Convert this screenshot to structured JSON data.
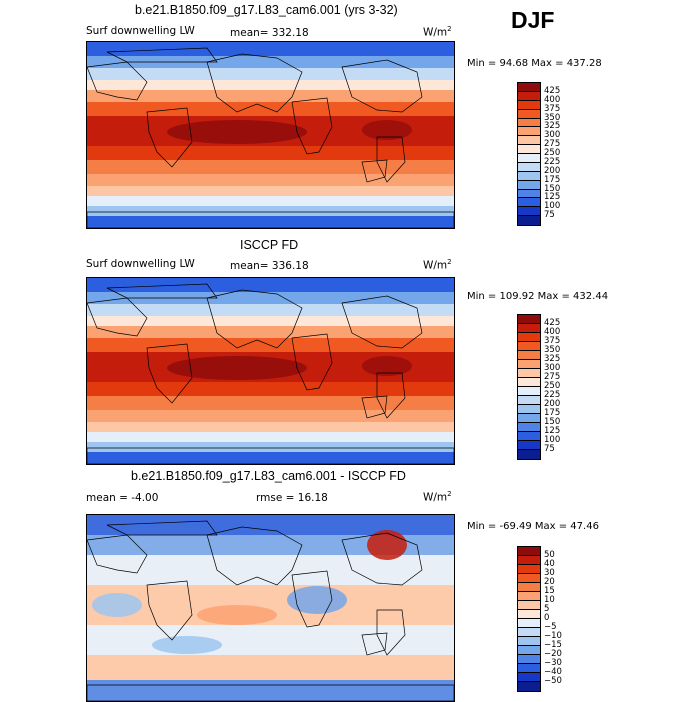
{
  "season": "DJF",
  "panels": [
    {
      "title": "b.e21.B1850.f09_g17.L83_cam6.001 (yrs 3-32)",
      "variable": "Surf downwelling LW",
      "stat_left": "mean=  332.18",
      "stat_right": "",
      "units": "W/m",
      "units_exp": "2",
      "minmax": "Min =   94.68 Max = 437.28",
      "colorbar": {
        "ticks": [
          "425",
          "400",
          "375",
          "350",
          "325",
          "300",
          "275",
          "250",
          "225",
          "200",
          "175",
          "150",
          "125",
          "100",
          "75"
        ],
        "colors": [
          "#8e0c0c",
          "#c51d0b",
          "#e2390f",
          "#f05a22",
          "#f57e47",
          "#fba273",
          "#fdc7a5",
          "#fde7d8",
          "#e5effa",
          "#c3dbf5",
          "#9dc5f0",
          "#74a6ea",
          "#4f84e6",
          "#2b5fdf",
          "#1737c7",
          "#0b1e8f"
        ]
      },
      "map_type": "lw"
    },
    {
      "title": "ISCCP FD",
      "variable": "Surf downwelling LW",
      "stat_left": "mean=  336.18",
      "stat_right": "",
      "units": "W/m",
      "units_exp": "2",
      "minmax": "Min = 109.92 Max = 432.44",
      "colorbar": {
        "ticks": [
          "425",
          "400",
          "375",
          "350",
          "325",
          "300",
          "275",
          "250",
          "225",
          "200",
          "175",
          "150",
          "125",
          "100",
          "75"
        ],
        "colors": [
          "#8e0c0c",
          "#c51d0b",
          "#e2390f",
          "#f05a22",
          "#f57e47",
          "#fba273",
          "#fdc7a5",
          "#fde7d8",
          "#e5effa",
          "#c3dbf5",
          "#9dc5f0",
          "#74a6ea",
          "#4f84e6",
          "#2b5fdf",
          "#1737c7",
          "#0b1e8f"
        ]
      },
      "map_type": "lw2"
    },
    {
      "title": "b.e21.B1850.f09_g17.L83_cam6.001 - ISCCP FD",
      "variable": "",
      "stat_left": "mean =   -4.00",
      "stat_right": "rmse =  16.18",
      "units": "W/m",
      "units_exp": "2",
      "minmax": "Min = -69.49 Max =   47.46",
      "colorbar": {
        "ticks": [
          "50",
          "40",
          "30",
          "20",
          "15",
          "10",
          "5",
          "0",
          "−5",
          "−10",
          "−15",
          "−20",
          "−30",
          "−40",
          "−50"
        ],
        "colors": [
          "#8e0c0c",
          "#c51d0b",
          "#e2390f",
          "#f05a22",
          "#f57e47",
          "#fba273",
          "#fdc7a5",
          "#fde7d8",
          "#e5effa",
          "#c3dbf5",
          "#9dc5f0",
          "#74a6ea",
          "#4f84e6",
          "#2b5fdf",
          "#1737c7",
          "#0b1e8f"
        ]
      },
      "map_type": "diff"
    }
  ]
}
